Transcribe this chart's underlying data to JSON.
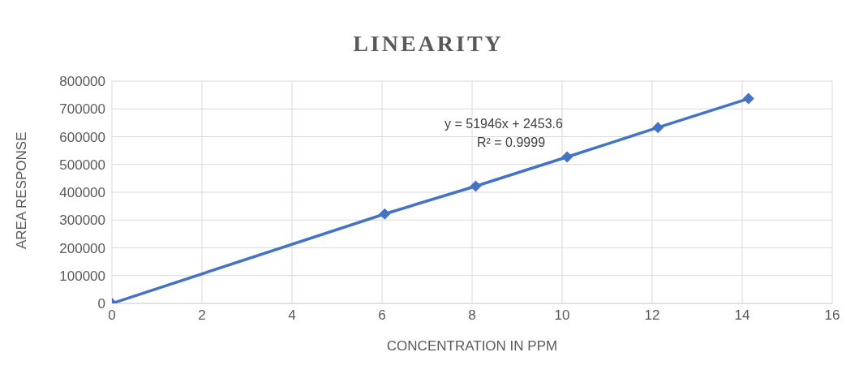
{
  "chart_data": {
    "type": "line",
    "title": "LINEARITY",
    "xlabel": "CONCENTRATION IN PPM",
    "ylabel": "AREA RESPONSE",
    "x": [
      0,
      6.06,
      8.08,
      10.11,
      12.13,
      14.14
    ],
    "series": [
      {
        "color": "#4472c4",
        "values": [
          0,
          322000,
          422000,
          527000,
          633000,
          737000
        ]
      }
    ],
    "xlim": [
      0,
      16
    ],
    "xticks": [
      0,
      2,
      4,
      6,
      8,
      10,
      12,
      14,
      16
    ],
    "ylim": [
      0,
      800000
    ],
    "yticks": [
      0,
      100000,
      200000,
      300000,
      400000,
      500000,
      600000,
      700000,
      800000
    ],
    "grid": true,
    "marker": "diamond",
    "line_style": "solid",
    "legend": false,
    "annotations": [
      "y = 51946x + 2453.6",
      "R² = 0.9999"
    ]
  }
}
